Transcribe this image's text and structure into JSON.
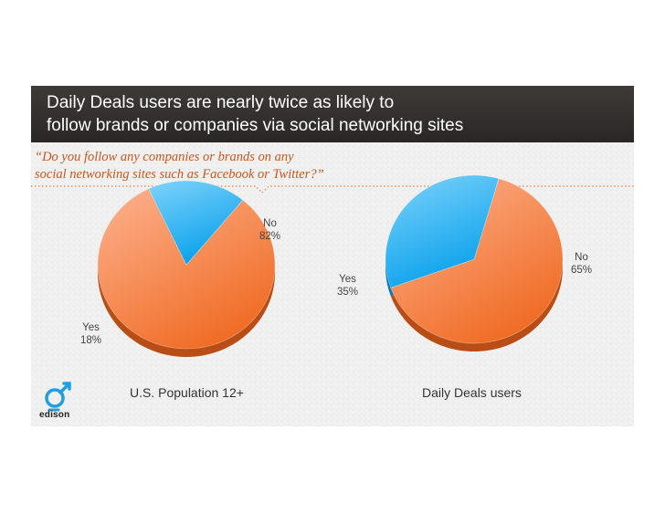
{
  "header": {
    "title_line1": "Daily Deals users are nearly twice as likely to",
    "title_line2": "follow brands or companies via social networking sites"
  },
  "question": {
    "line1": "“Do you follow any companies or brands on any",
    "line2": "social networking sites such as Facebook or Twitter?”"
  },
  "logo": {
    "text": "edison",
    "icon": "edison-logo-icon"
  },
  "colors": {
    "no": "#f07c3e",
    "yes": "#29aef0",
    "header": "#2f2d2b",
    "accent": "#c4571b"
  },
  "chart_data": [
    {
      "type": "pie",
      "title": "U.S. Population 12+",
      "categories": [
        "No",
        "Yes"
      ],
      "values": [
        82,
        18
      ],
      "value_labels": [
        "82%",
        "18%"
      ]
    },
    {
      "type": "pie",
      "title": "Daily Deals users",
      "categories": [
        "No",
        "Yes"
      ],
      "values": [
        65,
        35
      ],
      "value_labels": [
        "65%",
        "35%"
      ]
    }
  ]
}
